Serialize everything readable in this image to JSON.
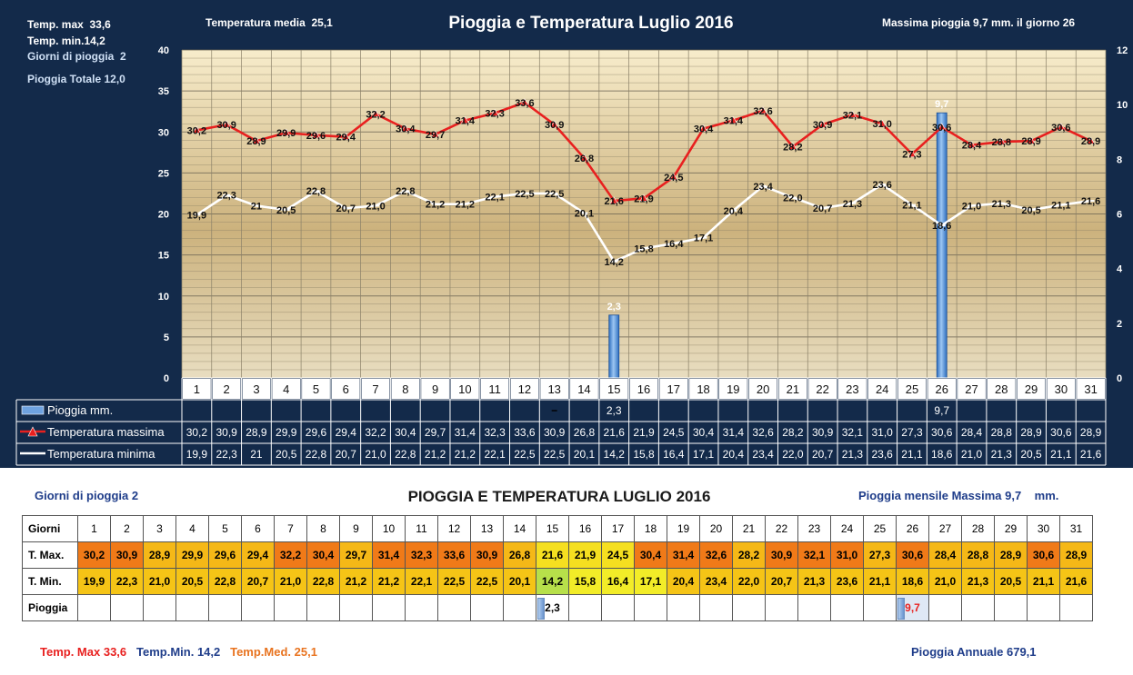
{
  "top_stats": {
    "tmax_label": "Temp. max",
    "tmax_value": "33,6",
    "tmin_label": "Temp.  min.",
    "tmin_value": "14,2",
    "rain_days_label": "Giorni di pioggia",
    "rain_days_value": "2",
    "rain_total_label": "Pioggia Totale",
    "rain_total_value": "12,0",
    "mean_label": "Temperatura media",
    "mean_value": "25,1",
    "max_rain_text": "Massima pioggia 9,7  mm. il giorno 26"
  },
  "chart_data": {
    "type": "line",
    "title": "Pioggia e Temperatura Luglio 2016",
    "categories": [
      "1",
      "2",
      "3",
      "4",
      "5",
      "6",
      "7",
      "8",
      "9",
      "10",
      "11",
      "12",
      "13",
      "14",
      "15",
      "16",
      "17",
      "18",
      "19",
      "20",
      "21",
      "22",
      "23",
      "24",
      "25",
      "26",
      "27",
      "28",
      "29",
      "30",
      "31"
    ],
    "y_left_ticks": [
      "0",
      "5",
      "10",
      "15",
      "20",
      "25",
      "30",
      "35",
      "40"
    ],
    "y_right_ticks": [
      "0",
      "2",
      "4",
      "6",
      "8",
      "10",
      "12"
    ],
    "ylim_left": [
      0,
      40
    ],
    "ylim_right": [
      0,
      12
    ],
    "grid": true,
    "series": [
      {
        "name": "Pioggia mm.",
        "type": "bar",
        "axis": "right",
        "color": "#5b93d6",
        "values": [
          null,
          null,
          null,
          null,
          null,
          null,
          null,
          null,
          null,
          null,
          null,
          null,
          null,
          null,
          2.3,
          null,
          null,
          null,
          null,
          null,
          null,
          null,
          null,
          null,
          null,
          9.7,
          null,
          null,
          null,
          null,
          null
        ],
        "labels": [
          "",
          "",
          "",
          "",
          "",
          "",
          "",
          "",
          "",
          "",
          "",
          "",
          "",
          "",
          "2,3",
          "",
          "",
          "",
          "",
          "",
          "",
          "",
          "",
          "",
          "",
          "9,7",
          "",
          "",
          "",
          "",
          ""
        ]
      },
      {
        "name": "Temperatura massima",
        "type": "line",
        "axis": "left",
        "color": "#e8201f",
        "values": [
          30.2,
          30.9,
          28.9,
          29.9,
          29.6,
          29.4,
          32.2,
          30.4,
          29.7,
          31.4,
          32.3,
          33.6,
          30.9,
          26.8,
          21.6,
          21.9,
          24.5,
          30.4,
          31.4,
          32.6,
          28.2,
          30.9,
          32.1,
          31.0,
          27.3,
          30.6,
          28.4,
          28.8,
          28.9,
          30.6,
          28.9
        ],
        "labels": [
          "30,2",
          "30,9",
          "28,9",
          "29,9",
          "29,6",
          "29,4",
          "32,2",
          "30,4",
          "29,7",
          "31,4",
          "32,3",
          "33,6",
          "30,9",
          "26,8",
          "21,6",
          "21,9",
          "24,5",
          "30,4",
          "31,4",
          "32,6",
          "28,2",
          "30,9",
          "32,1",
          "31,0",
          "27,3",
          "30,6",
          "28,4",
          "28,8",
          "28,9",
          "30,6",
          "28,9"
        ]
      },
      {
        "name": "Temperatura minima",
        "type": "line",
        "axis": "left",
        "color": "#ffffff",
        "values": [
          19.9,
          22.3,
          21.0,
          20.5,
          22.8,
          20.7,
          21.0,
          22.8,
          21.2,
          21.2,
          22.1,
          22.5,
          22.5,
          20.1,
          14.2,
          15.8,
          16.4,
          17.1,
          20.4,
          23.4,
          22.0,
          20.7,
          21.3,
          23.6,
          21.1,
          18.6,
          21.0,
          21.3,
          20.5,
          21.1,
          21.6
        ],
        "labels": [
          "19,9",
          "22,3",
          "21",
          "20,5",
          "22,8",
          "20,7",
          "21,0",
          "22,8",
          "21,2",
          "21,2",
          "22,1",
          "22,5",
          "22,5",
          "20,1",
          "14,2",
          "15,8",
          "16,4",
          "17,1",
          "20,4",
          "23,4",
          "22,0",
          "20,7",
          "21,3",
          "23,6",
          "21,1",
          "18,6",
          "21,0",
          "21,3",
          "20,5",
          "21,1",
          "21,6"
        ]
      }
    ],
    "table_labels": [
      "30,2",
      "30,9",
      "28,9",
      "29,9",
      "29,6",
      "29,4",
      "32,2",
      "30,4",
      "29,7",
      "31,4",
      "32,3",
      "33,6",
      "30,9",
      "26,8",
      "21,6",
      "21,9",
      "24,5",
      "30,4",
      "31,4",
      "32,6",
      "28,2",
      "30,9",
      "32,1",
      "31,0",
      "27,3",
      "30,6",
      "28,4",
      "28,8",
      "28,9",
      "30,6",
      "28,9"
    ],
    "table_min_labels": [
      "19,9",
      "22,3",
      "21",
      "20,5",
      "22,8",
      "20,7",
      "21,0",
      "22,8",
      "21,2",
      "21,2",
      "22,1",
      "22,5",
      "22,5",
      "20,1",
      "14,2",
      "15,8",
      "16,4",
      "17,1",
      "20,4",
      "23,4",
      "22,0",
      "20,7",
      "21,3",
      "23,6",
      "21,1",
      "18,6",
      "21,0",
      "21,3",
      "20,5",
      "21,1",
      "21,6"
    ],
    "table_rain_labels": [
      "",
      "",
      "",
      "",
      "",
      "",
      "",
      "",
      "",
      "",
      "",
      "",
      "",
      "",
      "2,3",
      "",
      "",
      "",
      "",
      "",
      "",
      "",
      "",
      "",
      "",
      "9,7",
      "",
      "",
      "",
      "",
      ""
    ],
    "extra_mark_day": 13
  },
  "bottom": {
    "title": "PIOGGIA E TEMPERATURA LUGLIO 2016",
    "rain_days_label": "Giorni di pioggia",
    "rain_days_value": "2",
    "max_monthly_label": "Pioggia mensile Massima",
    "max_monthly_value": "9,7",
    "max_monthly_unit": "mm.",
    "table": {
      "row_labels": [
        "Giorni",
        "T. Max.",
        "T. Min.",
        "Pioggia"
      ],
      "days": [
        "1",
        "2",
        "3",
        "4",
        "5",
        "6",
        "7",
        "8",
        "9",
        "10",
        "11",
        "12",
        "13",
        "14",
        "15",
        "16",
        "17",
        "18",
        "19",
        "20",
        "21",
        "22",
        "23",
        "24",
        "25",
        "26",
        "27",
        "28",
        "29",
        "30",
        "31"
      ],
      "tmax": [
        "30,2",
        "30,9",
        "28,9",
        "29,9",
        "29,6",
        "29,4",
        "32,2",
        "30,4",
        "29,7",
        "31,4",
        "32,3",
        "33,6",
        "30,9",
        "26,8",
        "21,6",
        "21,9",
        "24,5",
        "30,4",
        "31,4",
        "32,6",
        "28,2",
        "30,9",
        "32,1",
        "31,0",
        "27,3",
        "30,6",
        "28,4",
        "28,8",
        "28,9",
        "30,6",
        "28,9"
      ],
      "tmin": [
        "19,9",
        "22,3",
        "21,0",
        "20,5",
        "22,8",
        "20,7",
        "21,0",
        "22,8",
        "21,2",
        "21,2",
        "22,1",
        "22,5",
        "22,5",
        "20,1",
        "14,2",
        "15,8",
        "16,4",
        "17,1",
        "20,4",
        "23,4",
        "22,0",
        "20,7",
        "21,3",
        "23,6",
        "21,1",
        "18,6",
        "21,0",
        "21,3",
        "20,5",
        "21,1",
        "21,6"
      ],
      "rain": [
        "",
        "",
        "",
        "",
        "",
        "",
        "",
        "",
        "",
        "",
        "",
        "",
        "",
        "",
        "2,3",
        "",
        "",
        "",
        "",
        "",
        "",
        "",
        "",
        "",
        "",
        "9,7",
        "",
        "",
        "",
        "",
        ""
      ]
    },
    "footer": {
      "tmax_label": "Temp. Max",
      "tmax_value": "33,6",
      "tmin_label": "Temp.Min.",
      "tmin_value": "14,2",
      "tmed_label": "Temp.Med.",
      "tmed_value": "25,1",
      "annual_label": "Pioggia Annuale",
      "annual_value": "679,1"
    },
    "colors": {
      "tmax_footer": "#e8201f",
      "tmin_footer": "#1f3d8a",
      "tmed_footer": "#e8731f",
      "title_blue": "#1f3d8a"
    }
  }
}
